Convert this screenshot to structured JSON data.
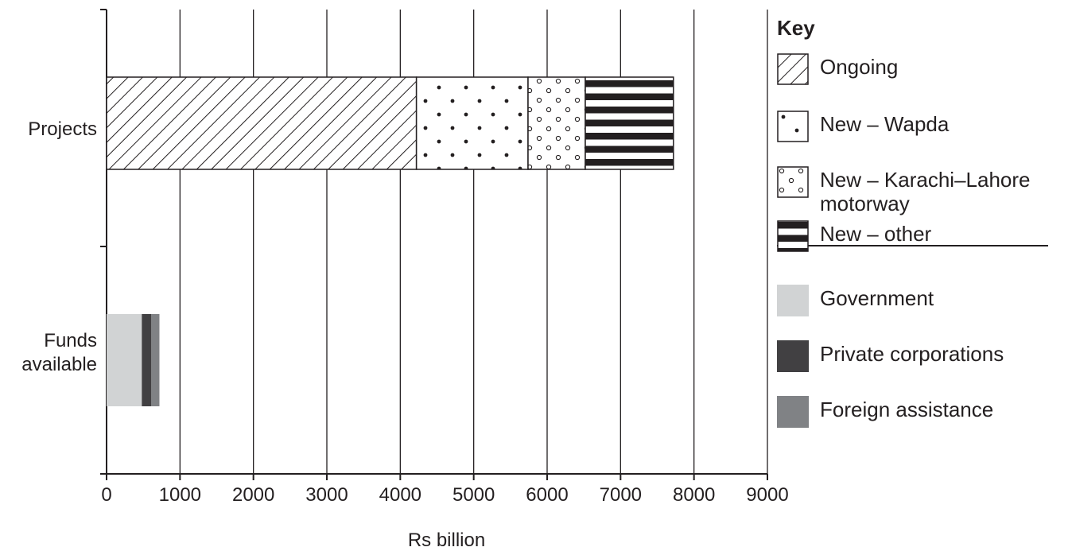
{
  "chart_data": {
    "type": "bar",
    "orientation": "horizontal",
    "stacked": true,
    "categories": [
      "Projects",
      "Funds available"
    ],
    "category_labels": [
      [
        "Projects"
      ],
      [
        "Funds",
        "available"
      ]
    ],
    "xlabel": "Rs billion",
    "xlim": [
      0,
      9000
    ],
    "xticks": [
      0,
      1000,
      2000,
      3000,
      4000,
      5000,
      6000,
      7000,
      8000,
      9000
    ],
    "grid": "vertical",
    "legend_title": "Key",
    "legend_position": "right",
    "series": [
      {
        "name": "Ongoing",
        "category": "Projects",
        "value": 4220,
        "pattern": "diagonal-hatch"
      },
      {
        "name": "New – Wapda",
        "category": "Projects",
        "value": 1520,
        "pattern": "large-dots"
      },
      {
        "name": "New – Karachi–Lahore motorway",
        "category": "Projects",
        "value": 780,
        "pattern": "small-circles"
      },
      {
        "name": "New – other",
        "category": "Projects",
        "value": 1200,
        "pattern": "thick-horizontal-stripes"
      },
      {
        "name": "Government",
        "category": "Funds available",
        "value": 480,
        "color": "#d1d3d4"
      },
      {
        "name": "Private corporations",
        "category": "Funds available",
        "value": 130,
        "color": "#414042"
      },
      {
        "name": "Foreign assistance",
        "category": "Funds available",
        "value": 110,
        "color": "#808285"
      }
    ]
  },
  "legend": {
    "title": "Key",
    "items": [
      {
        "label_lines": [
          "Ongoing"
        ],
        "pattern": "diagonal-hatch"
      },
      {
        "label_lines": [
          "New – Wapda"
        ],
        "pattern": "large-dots"
      },
      {
        "label_lines": [
          "New – Karachi–Lahore",
          "motorway"
        ],
        "pattern": "small-circles"
      },
      {
        "label_lines": [
          "New – other"
        ],
        "pattern": "thick-horizontal-stripes"
      },
      {
        "label_lines": [
          "Government"
        ],
        "color": "#d1d3d4"
      },
      {
        "label_lines": [
          "Private corporations"
        ],
        "color": "#414042"
      },
      {
        "label_lines": [
          "Foreign assistance"
        ],
        "color": "#808285"
      }
    ]
  },
  "colors": {
    "ink": "#231f20",
    "government": "#d1d3d4",
    "private_corporations": "#414042",
    "foreign_assistance": "#808285"
  }
}
